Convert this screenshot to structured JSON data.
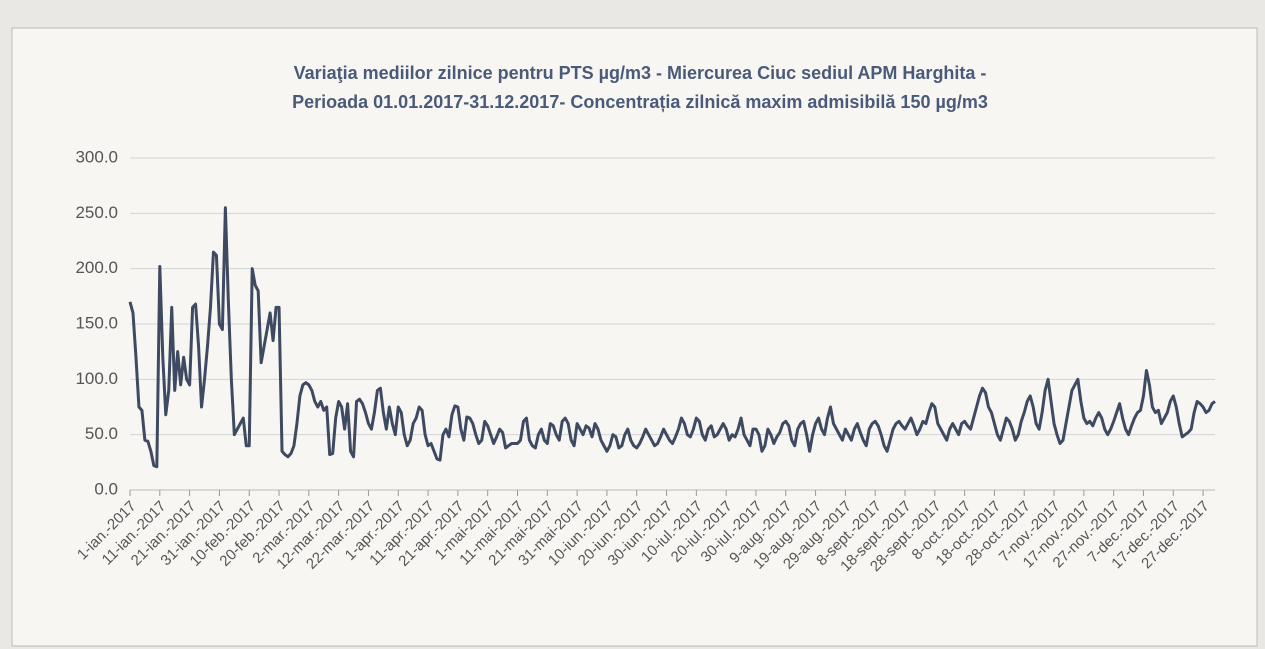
{
  "chart_data": {
    "type": "line",
    "title": [
      "Variaţia mediilor zilnice pentru PTS µg/m3 - Miercurea Ciuc sediul APM Harghita -",
      "Perioada 01.01.2017-31.12.2017- Concentrația zilnică maxim admisibilă 150 µg/m3"
    ],
    "ylim": [
      0,
      300
    ],
    "yticks": [
      {
        "value": 0,
        "label": "0.0"
      },
      {
        "value": 50,
        "label": "50.0"
      },
      {
        "value": 100,
        "label": "100.0"
      },
      {
        "value": 150,
        "label": "150.0"
      },
      {
        "value": 200,
        "label": "200.0"
      },
      {
        "value": 250,
        "label": "250.0"
      },
      {
        "value": 300,
        "label": "300.0"
      }
    ],
    "grid": true,
    "categories": [
      "1-ian.-2017",
      null,
      null,
      null,
      null,
      null,
      null,
      null,
      null,
      null,
      "11-ian.-2017",
      null,
      null,
      null,
      null,
      null,
      null,
      null,
      null,
      null,
      "21-ian.-2017",
      null,
      null,
      null,
      null,
      null,
      null,
      null,
      null,
      null,
      "31-ian.-2017",
      null,
      null,
      null,
      null,
      null,
      null,
      null,
      null,
      null,
      "10-feb.-2017",
      null,
      null,
      null,
      null,
      null,
      null,
      null,
      null,
      null,
      "20-feb.-2017",
      null,
      null,
      null,
      null,
      null,
      null,
      null,
      null,
      null,
      "2-mar.-2017",
      null,
      null,
      null,
      null,
      null,
      null,
      null,
      null,
      null,
      "12-mar.-2017",
      null,
      null,
      null,
      null,
      null,
      null,
      null,
      null,
      null,
      "22-mar.-2017",
      null,
      null,
      null,
      null,
      null,
      null,
      null,
      null,
      null,
      "1-apr.-2017",
      null,
      null,
      null,
      null,
      null,
      null,
      null,
      null,
      null,
      "11-apr.-2017",
      null,
      null,
      null,
      null,
      null,
      null,
      null,
      null,
      null,
      "21-apr.-2017",
      null,
      null,
      null,
      null,
      null,
      null,
      null,
      null,
      null,
      "1-mai-2017",
      null,
      null,
      null,
      null,
      null,
      null,
      null,
      null,
      null,
      "11-mai-2017",
      null,
      null,
      null,
      null,
      null,
      null,
      null,
      null,
      null,
      "21-mai-2017",
      null,
      null,
      null,
      null,
      null,
      null,
      null,
      null,
      null,
      "31-mai-2017",
      null,
      null,
      null,
      null,
      null,
      null,
      null,
      null,
      null,
      "10-iun.-2017",
      null,
      null,
      null,
      null,
      null,
      null,
      null,
      null,
      null,
      "20-iun.-2017",
      null,
      null,
      null,
      null,
      null,
      null,
      null,
      null,
      null,
      "30-iun.-2017",
      null,
      null,
      null,
      null,
      null,
      null,
      null,
      null,
      null,
      "10-iul.-2017",
      null,
      null,
      null,
      null,
      null,
      null,
      null,
      null,
      null,
      "20-iul.-2017",
      null,
      null,
      null,
      null,
      null,
      null,
      null,
      null,
      null,
      "30-iul.-2017",
      null,
      null,
      null,
      null,
      null,
      null,
      null,
      null,
      null,
      "9-aug.-2017",
      null,
      null,
      null,
      null,
      null,
      null,
      null,
      null,
      null,
      "19-aug.-2017",
      null,
      null,
      null,
      null,
      null,
      null,
      null,
      null,
      null,
      "29-aug.-2017",
      null,
      null,
      null,
      null,
      null,
      null,
      null,
      null,
      null,
      "8-sept.-2017",
      null,
      null,
      null,
      null,
      null,
      null,
      null,
      null,
      null,
      "18-sept.-2017",
      null,
      null,
      null,
      null,
      null,
      null,
      null,
      null,
      null,
      "28-sept.-2017",
      null,
      null,
      null,
      null,
      null,
      null,
      null,
      null,
      null,
      "8-oct.-2017",
      null,
      null,
      null,
      null,
      null,
      null,
      null,
      null,
      null,
      "18-oct.-2017",
      null,
      null,
      null,
      null,
      null,
      null,
      null,
      null,
      null,
      "28-oct.-2017",
      null,
      null,
      null,
      null,
      null,
      null,
      null,
      null,
      null,
      "7-nov.-2017",
      null,
      null,
      null,
      null,
      null,
      null,
      null,
      null,
      null,
      "17-nov.-2017",
      null,
      null,
      null,
      null,
      null,
      null,
      null,
      null,
      null,
      "27-nov.-2017",
      null,
      null,
      null,
      null,
      null,
      null,
      null,
      null,
      null,
      "7-dec.-2017",
      null,
      null,
      null,
      null,
      null,
      null,
      null,
      null,
      null,
      "17-dec.-2017",
      null,
      null,
      null,
      null,
      null,
      null,
      null,
      null,
      null,
      "27-dec.-2017",
      null,
      null,
      null,
      null
    ],
    "series": [
      {
        "color": "#3e4a61",
        "values": [
          170,
          160,
          120,
          75,
          72,
          45,
          44,
          35,
          22,
          21,
          202,
          120,
          68,
          90,
          165,
          90,
          125,
          95,
          120,
          100,
          95,
          165,
          168,
          130,
          75,
          100,
          130,
          165,
          215,
          212,
          150,
          145,
          255,
          170,
          100,
          50,
          55,
          60,
          65,
          40,
          40,
          200,
          185,
          180,
          115,
          130,
          145,
          160,
          135,
          165,
          165,
          35,
          32,
          30,
          33,
          40,
          60,
          85,
          95,
          97,
          95,
          90,
          80,
          75,
          80,
          72,
          75,
          32,
          33,
          65,
          80,
          75,
          55,
          78,
          35,
          30,
          80,
          82,
          78,
          70,
          60,
          55,
          70,
          90,
          92,
          70,
          55,
          75,
          60,
          50,
          75,
          70,
          50,
          40,
          45,
          60,
          65,
          75,
          72,
          50,
          40,
          42,
          35,
          28,
          27,
          50,
          55,
          48,
          68,
          76,
          75,
          55,
          45,
          66,
          65,
          60,
          50,
          42,
          45,
          62,
          58,
          50,
          42,
          48,
          55,
          52,
          38,
          40,
          42,
          42,
          42,
          45,
          62,
          65,
          45,
          40,
          38,
          50,
          55,
          45,
          42,
          60,
          58,
          50,
          45,
          62,
          65,
          60,
          45,
          40,
          60,
          55,
          50,
          58,
          56,
          48,
          60,
          55,
          45,
          40,
          35,
          40,
          50,
          48,
          38,
          40,
          50,
          55,
          45,
          40,
          38,
          42,
          48,
          55,
          50,
          45,
          40,
          42,
          48,
          55,
          50,
          45,
          42,
          48,
          55,
          65,
          60,
          50,
          48,
          55,
          65,
          62,
          50,
          45,
          55,
          58,
          48,
          50,
          55,
          60,
          55,
          45,
          50,
          48,
          55,
          65,
          50,
          45,
          40,
          55,
          55,
          50,
          35,
          40,
          55,
          50,
          42,
          48,
          52,
          60,
          62,
          58,
          45,
          40,
          55,
          60,
          62,
          50,
          35,
          50,
          60,
          65,
          55,
          50,
          65,
          75,
          60,
          55,
          50,
          45,
          55,
          50,
          45,
          55,
          60,
          52,
          45,
          40,
          55,
          60,
          62,
          58,
          50,
          40,
          35,
          45,
          55,
          60,
          62,
          58,
          55,
          60,
          65,
          58,
          50,
          55,
          62,
          60,
          70,
          78,
          75,
          60,
          55,
          50,
          45,
          55,
          60,
          55,
          50,
          60,
          62,
          58,
          55,
          65,
          75,
          85,
          92,
          88,
          75,
          70,
          60,
          50,
          45,
          55,
          65,
          62,
          55,
          45,
          50,
          62,
          70,
          80,
          85,
          75,
          60,
          55,
          70,
          90,
          100,
          80,
          60,
          50,
          42,
          45,
          60,
          75,
          90,
          95,
          100,
          80,
          65,
          60,
          62,
          58,
          65,
          70,
          65,
          55,
          50,
          55,
          62,
          70,
          78,
          65,
          55,
          50,
          58,
          65,
          70,
          72,
          85,
          108,
          95,
          75,
          70,
          72,
          60,
          65,
          70,
          80,
          85,
          75,
          60,
          48,
          50,
          52,
          55,
          70,
          80,
          78,
          75,
          70,
          72,
          78,
          80
        ]
      }
    ]
  }
}
